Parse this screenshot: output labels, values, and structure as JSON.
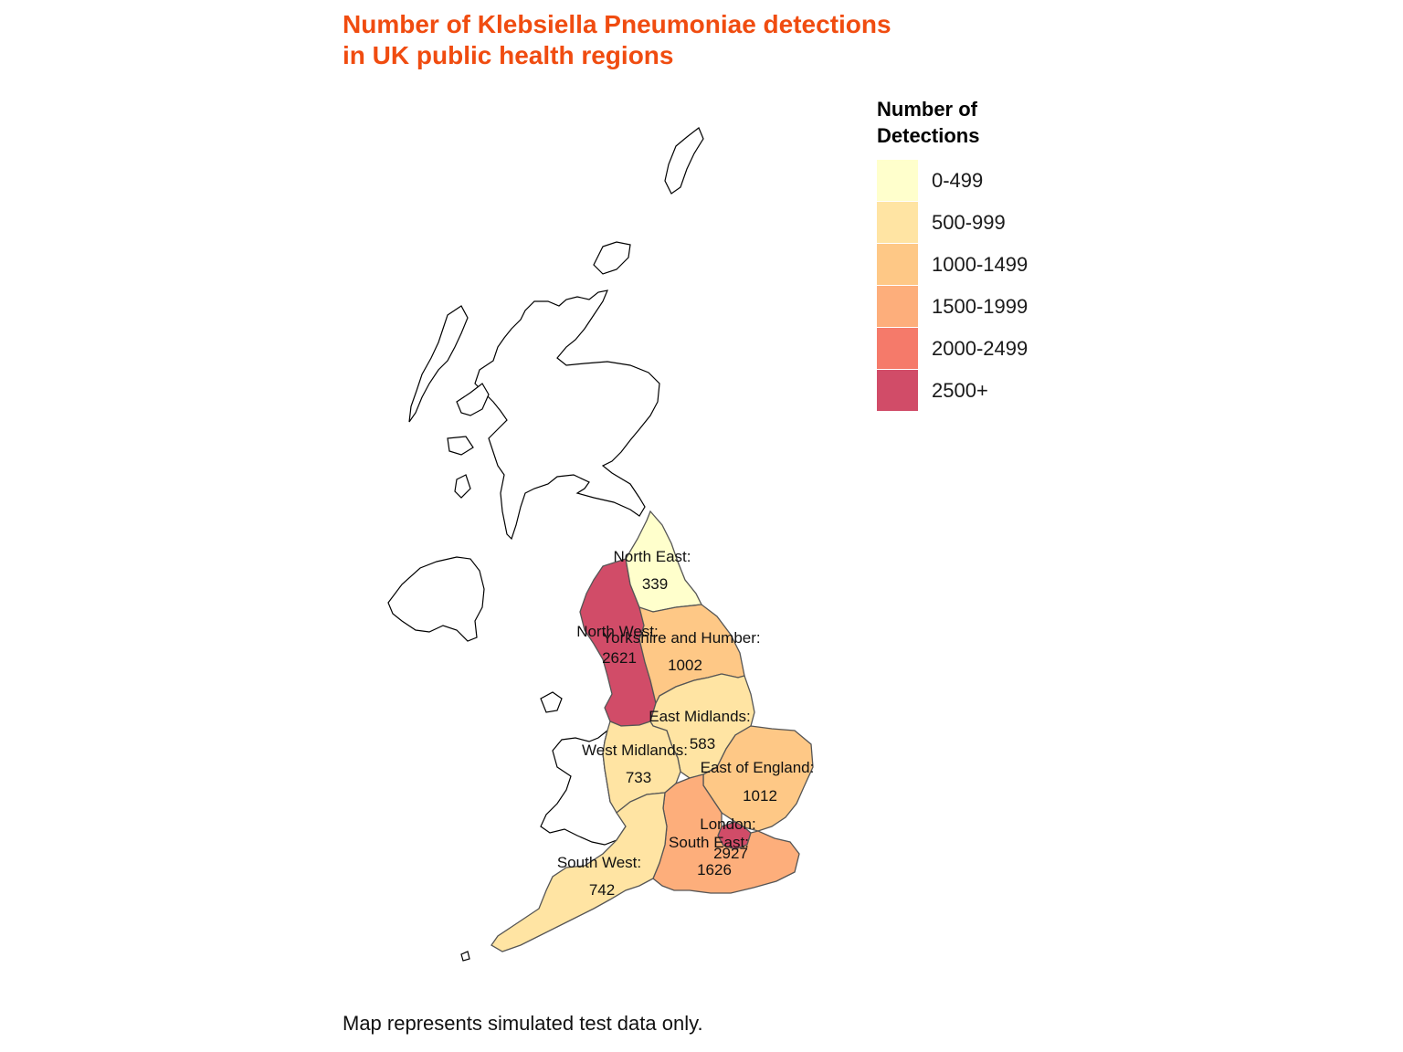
{
  "title": {
    "line1": "Number of Klebsiella Pneumoniae detections",
    "line2": "in UK public health regions",
    "color": "#F04C10"
  },
  "legend": {
    "title_line1": "Number of",
    "title_line2": "Detections",
    "items": [
      {
        "label": "0-499",
        "color": "#FFFFCC"
      },
      {
        "label": "500-999",
        "color": "#FFE4A3"
      },
      {
        "label": "1000-1499",
        "color": "#FEC886"
      },
      {
        "label": "1500-1999",
        "color": "#FDAE7B"
      },
      {
        "label": "2000-2499",
        "color": "#F57A6A"
      },
      {
        "label": "2500+",
        "color": "#D14C68"
      }
    ]
  },
  "regions": [
    {
      "id": "north-east",
      "name": "North East:",
      "value": "339",
      "color": "#FFFFCC"
    },
    {
      "id": "north-west",
      "name": "North West:",
      "value": "2621",
      "color": "#D14C68"
    },
    {
      "id": "yorkshire-and-humber",
      "name": "Yorkshire and Humber:",
      "value": "1002",
      "color": "#FEC886"
    },
    {
      "id": "east-midlands",
      "name": "East Midlands:",
      "value": "583",
      "color": "#FFE4A3"
    },
    {
      "id": "west-midlands",
      "name": "West Midlands:",
      "value": "733",
      "color": "#FFE4A3"
    },
    {
      "id": "east-of-england",
      "name": "East of England:",
      "value": "1012",
      "color": "#FEC886"
    },
    {
      "id": "london",
      "name": "London:",
      "value": "2927",
      "color": "#D14C68"
    },
    {
      "id": "south-east",
      "name": "South East:",
      "value": "1626",
      "color": "#FDAE7B"
    },
    {
      "id": "south-west",
      "name": "South West:",
      "value": "742",
      "color": "#FFE4A3"
    }
  ],
  "caption": "Map represents simulated test data only."
}
